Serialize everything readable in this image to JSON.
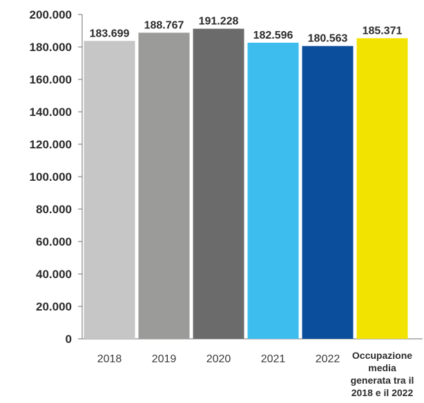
{
  "chart_data": {
    "type": "bar",
    "categories": [
      "2018",
      "2019",
      "2020",
      "2021",
      "2022",
      "Occupazione media generata tra il 2018 e il 2022"
    ],
    "category_lines": [
      [
        "2018"
      ],
      [
        "2019"
      ],
      [
        "2020"
      ],
      [
        "2021"
      ],
      [
        "2022"
      ],
      [
        "Occupazione",
        "media",
        "generata tra il",
        "2018 e il 2022"
      ]
    ],
    "values": [
      183699,
      188767,
      191228,
      182596,
      180563,
      185371
    ],
    "value_labels": [
      "183.699",
      "188.767",
      "191.228",
      "182.596",
      "180.563",
      "185.371"
    ],
    "colors": [
      "#c6c6c6",
      "#9b9b9a",
      "#6b6b6b",
      "#3dbdee",
      "#0a4e9c",
      "#f2e300"
    ],
    "y_ticks": [
      0,
      20000,
      40000,
      60000,
      80000,
      100000,
      120000,
      140000,
      160000,
      180000,
      200000
    ],
    "y_tick_labels": [
      "0",
      "20.000",
      "40.000",
      "60.000",
      "80.000",
      "100.000",
      "120.000",
      "140.000",
      "160.000",
      "180.000",
      "200.000"
    ],
    "ylim": [
      0,
      200000
    ],
    "grid": false,
    "legend": "none"
  }
}
